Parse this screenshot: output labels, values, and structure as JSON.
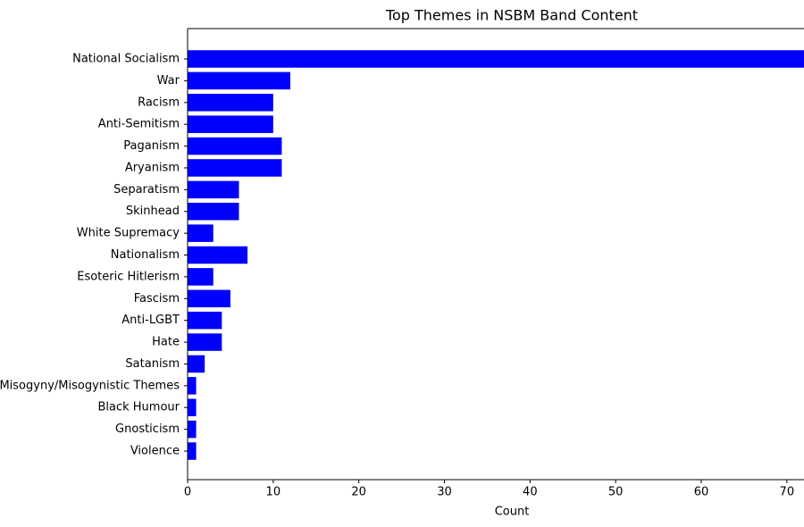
{
  "chart_data": {
    "type": "barh",
    "title": "Top Themes in NSBM Band Content",
    "x_label": "Count",
    "categories": [
      "National Socialism",
      "War",
      "Racism",
      "Anti-Semitism",
      "Paganism",
      "Aryanism",
      "Separatism",
      "Skinhead",
      "White Supremacy",
      "Nationalism",
      "Esoteric Hitlerism",
      "Fascism",
      "Anti-LGBT",
      "Hate",
      "Satanism",
      "Misogyny/Misogynistic Themes",
      "Black Humour",
      "Gnosticism",
      "Violence"
    ],
    "values": [
      72,
      12,
      10,
      10,
      11,
      11,
      6,
      6,
      3,
      7,
      3,
      5,
      4,
      4,
      2,
      1,
      1,
      1,
      1
    ],
    "color": "#0000ff",
    "xlim": [
      0,
      72
    ],
    "xticks": [
      0,
      10,
      20,
      30,
      40,
      50,
      60,
      70
    ]
  }
}
